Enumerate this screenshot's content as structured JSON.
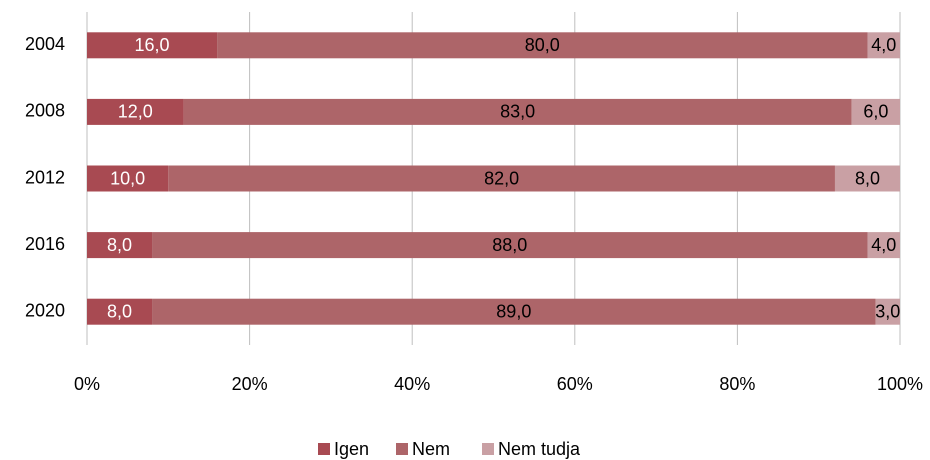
{
  "chart_data": {
    "type": "bar",
    "orientation": "horizontal",
    "stacked": "percent",
    "categories": [
      "2004",
      "2008",
      "2012",
      "2016",
      "2020"
    ],
    "series": [
      {
        "name": "Igen",
        "color": "#a84a52",
        "values": [
          16,
          12,
          10,
          8,
          8
        ],
        "value_labels": [
          "16,0",
          "12,0",
          "10,0",
          "8,0",
          "8,0"
        ],
        "label_color": "#ffffff"
      },
      {
        "name": "Nem",
        "color": "#ad6569",
        "values": [
          80,
          83,
          82,
          88,
          89
        ],
        "value_labels": [
          "80,0",
          "83,0",
          "82,0",
          "88,0",
          "89,0"
        ],
        "label_color": "#000000"
      },
      {
        "name": "Nem tudja",
        "color": "#c9a0a4",
        "values": [
          4,
          6,
          8,
          4,
          3
        ],
        "value_labels": [
          "4,0",
          "6,0",
          "8,0",
          "4,0",
          "3,0"
        ],
        "label_color": "#000000"
      }
    ],
    "xlim": [
      0,
      100
    ],
    "xticks": [
      {
        "value": 0,
        "label": "0%"
      },
      {
        "value": 20,
        "label": "20%"
      },
      {
        "value": 40,
        "label": "40%"
      },
      {
        "value": 60,
        "label": "60%"
      },
      {
        "value": 80,
        "label": "80%"
      },
      {
        "value": 100,
        "label": "100%"
      }
    ],
    "grid": true,
    "legend": "bottom"
  }
}
